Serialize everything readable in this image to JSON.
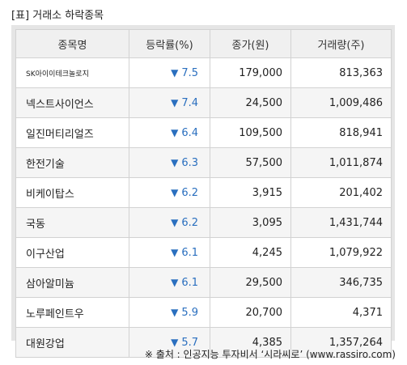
{
  "title": "[표] 거래소 하락종목",
  "headers": [
    "종목명",
    "등락률(%)",
    "종가(원)",
    "거래량(주)"
  ],
  "down_arrow": "▼",
  "rows": [
    {
      "name": "SK아이이테크놀로지",
      "rate": "7.5",
      "price": "179,000",
      "volume": "813,363"
    },
    {
      "name": "넥스트사이언스",
      "rate": "7.4",
      "price": "24,500",
      "volume": "1,009,486"
    },
    {
      "name": "일진머티리얼즈",
      "rate": "6.4",
      "price": "109,500",
      "volume": "818,941"
    },
    {
      "name": "한전기술",
      "rate": "6.3",
      "price": "57,500",
      "volume": "1,011,874"
    },
    {
      "name": "비케이탑스",
      "rate": "6.2",
      "price": "3,915",
      "volume": "201,402"
    },
    {
      "name": "국동",
      "rate": "6.2",
      "price": "3,095",
      "volume": "1,431,744"
    },
    {
      "name": "이구산업",
      "rate": "6.1",
      "price": "4,245",
      "volume": "1,079,922"
    },
    {
      "name": "삼아알미늄",
      "rate": "6.1",
      "price": "29,500",
      "volume": "346,735"
    },
    {
      "name": "노루페인트우",
      "rate": "5.9",
      "price": "20,700",
      "volume": "4,371"
    },
    {
      "name": "대원강업",
      "rate": "5.7",
      "price": "4,385",
      "volume": "1,357,264"
    }
  ],
  "source": "※ 출처 : 인공지능 투자비서 ‘시라씨로’ (www.rassiro.com)",
  "colors": {
    "down": "#2a6fbf",
    "header_bg": "#f0f0f0",
    "alt_row_bg": "#f5f5f5"
  }
}
